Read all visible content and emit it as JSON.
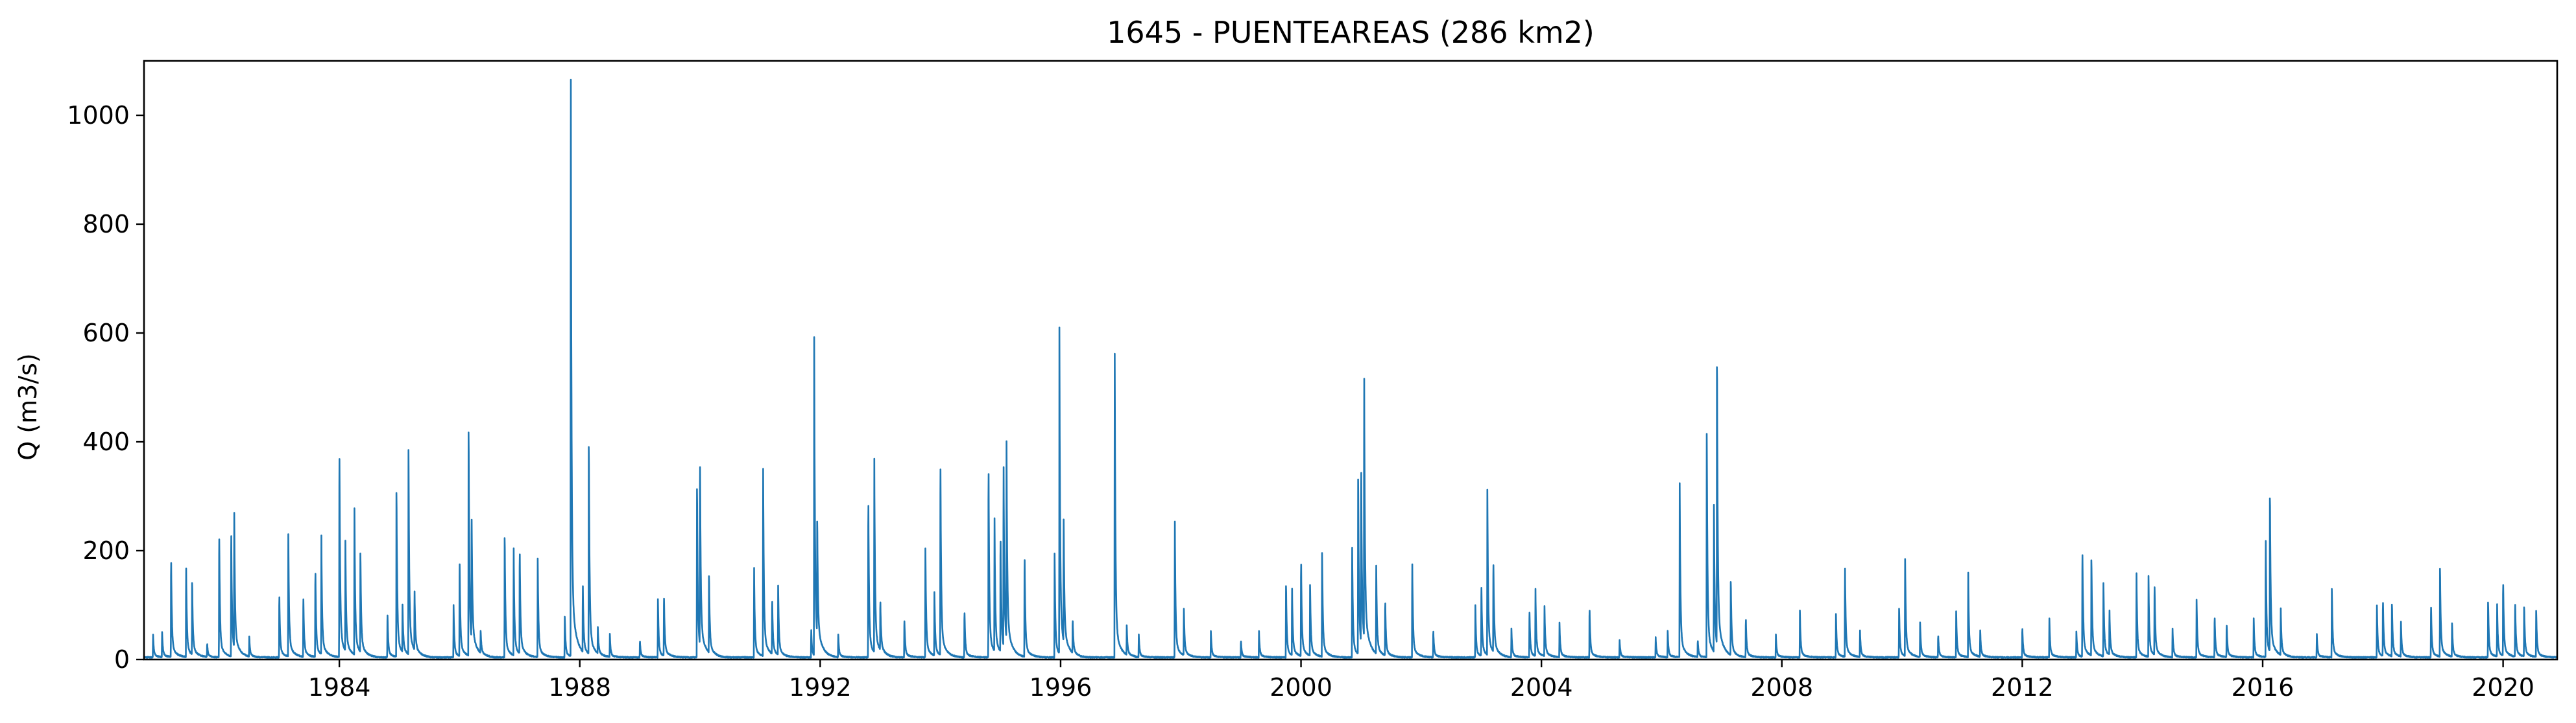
{
  "chart_data": {
    "type": "line",
    "title": "1645 - PUENTEAREAS (286 km2)",
    "xlabel": "",
    "ylabel": "Q (m3/s)",
    "xlim": [
      1980.75,
      2020.9
    ],
    "ylim": [
      0,
      1100
    ],
    "xticks": [
      1984,
      1988,
      1992,
      1996,
      2000,
      2004,
      2008,
      2012,
      2016,
      2020
    ],
    "yticks": [
      0,
      200,
      400,
      600,
      800,
      1000
    ],
    "grid": false,
    "legend": "none",
    "series": [
      {
        "color": "#1f77b4",
        "base_flow": 3,
        "peaks": [
          [
            1980.9,
            40
          ],
          [
            1981.05,
            45
          ],
          [
            1981.2,
            180
          ],
          [
            1981.45,
            160
          ],
          [
            1981.55,
            130
          ],
          [
            1981.8,
            25
          ],
          [
            1982.0,
            225
          ],
          [
            1982.2,
            230
          ],
          [
            1982.25,
            245
          ],
          [
            1982.5,
            35
          ],
          [
            1983.0,
            115
          ],
          [
            1983.15,
            225
          ],
          [
            1983.4,
            110
          ],
          [
            1983.6,
            160
          ],
          [
            1983.7,
            205
          ],
          [
            1984.0,
            380
          ],
          [
            1984.1,
            190
          ],
          [
            1984.25,
            265
          ],
          [
            1984.35,
            180
          ],
          [
            1984.8,
            80
          ],
          [
            1984.95,
            300
          ],
          [
            1985.05,
            85
          ],
          [
            1985.15,
            375
          ],
          [
            1985.25,
            105
          ],
          [
            1985.9,
            90
          ],
          [
            1986.0,
            175
          ],
          [
            1986.15,
            410
          ],
          [
            1986.2,
            230
          ],
          [
            1986.35,
            40
          ],
          [
            1986.75,
            220
          ],
          [
            1986.9,
            185
          ],
          [
            1987.0,
            190
          ],
          [
            1987.3,
            170
          ],
          [
            1987.75,
            75
          ],
          [
            1987.85,
            1048
          ],
          [
            1988.05,
            120
          ],
          [
            1988.15,
            380
          ],
          [
            1988.3,
            45
          ],
          [
            1988.5,
            40
          ],
          [
            1989.0,
            30
          ],
          [
            1989.3,
            100
          ],
          [
            1989.4,
            110
          ],
          [
            1989.95,
            310
          ],
          [
            1990.0,
            340
          ],
          [
            1990.15,
            140
          ],
          [
            1990.9,
            155
          ],
          [
            1991.05,
            340
          ],
          [
            1991.2,
            100
          ],
          [
            1991.3,
            120
          ],
          [
            1991.85,
            50
          ],
          [
            1991.9,
            550
          ],
          [
            1991.95,
            205
          ],
          [
            1992.3,
            40
          ],
          [
            1992.8,
            290
          ],
          [
            1992.9,
            333
          ],
          [
            1993.0,
            90
          ],
          [
            1993.4,
            70
          ],
          [
            1993.75,
            200
          ],
          [
            1993.9,
            110
          ],
          [
            1994.0,
            355
          ],
          [
            1994.4,
            85
          ],
          [
            1994.8,
            350
          ],
          [
            1994.9,
            230
          ],
          [
            1995.0,
            210
          ],
          [
            1995.05,
            325
          ],
          [
            1995.1,
            340
          ],
          [
            1995.4,
            185
          ],
          [
            1995.9,
            180
          ],
          [
            1995.98,
            540
          ],
          [
            1996.05,
            220
          ],
          [
            1996.2,
            60
          ],
          [
            1996.9,
            525
          ],
          [
            1997.1,
            50
          ],
          [
            1997.3,
            40
          ],
          [
            1997.9,
            235
          ],
          [
            1998.05,
            85
          ],
          [
            1998.5,
            45
          ],
          [
            1999.0,
            30
          ],
          [
            1999.3,
            45
          ],
          [
            1999.75,
            130
          ],
          [
            1999.85,
            120
          ],
          [
            2000.0,
            175
          ],
          [
            2000.15,
            130
          ],
          [
            2000.35,
            190
          ],
          [
            2000.85,
            200
          ],
          [
            2000.95,
            320
          ],
          [
            2001.0,
            325
          ],
          [
            2001.05,
            470
          ],
          [
            2001.25,
            160
          ],
          [
            2001.4,
            100
          ],
          [
            2001.85,
            170
          ],
          [
            2002.2,
            50
          ],
          [
            2002.9,
            90
          ],
          [
            2003.0,
            130
          ],
          [
            2003.1,
            285
          ],
          [
            2003.2,
            165
          ],
          [
            2003.5,
            50
          ],
          [
            2003.8,
            85
          ],
          [
            2003.9,
            115
          ],
          [
            2004.05,
            90
          ],
          [
            2004.3,
            60
          ],
          [
            2004.8,
            90
          ],
          [
            2005.3,
            30
          ],
          [
            2005.9,
            35
          ],
          [
            2006.1,
            45
          ],
          [
            2006.3,
            300
          ],
          [
            2006.6,
            30
          ],
          [
            2006.75,
            410
          ],
          [
            2006.87,
            250
          ],
          [
            2006.92,
            525
          ],
          [
            2007.15,
            135
          ],
          [
            2007.4,
            70
          ],
          [
            2007.9,
            40
          ],
          [
            2008.3,
            80
          ],
          [
            2008.9,
            75
          ],
          [
            2009.05,
            160
          ],
          [
            2009.3,
            45
          ],
          [
            2009.95,
            90
          ],
          [
            2010.05,
            175
          ],
          [
            2010.3,
            60
          ],
          [
            2010.6,
            40
          ],
          [
            2010.9,
            80
          ],
          [
            2011.1,
            145
          ],
          [
            2011.3,
            45
          ],
          [
            2012.0,
            55
          ],
          [
            2012.45,
            70
          ],
          [
            2012.9,
            45
          ],
          [
            2013.0,
            195
          ],
          [
            2013.15,
            175
          ],
          [
            2013.35,
            135
          ],
          [
            2013.45,
            80
          ],
          [
            2013.9,
            145
          ],
          [
            2014.1,
            140
          ],
          [
            2014.2,
            130
          ],
          [
            2014.5,
            50
          ],
          [
            2014.9,
            100
          ],
          [
            2015.2,
            75
          ],
          [
            2015.4,
            60
          ],
          [
            2015.85,
            70
          ],
          [
            2016.05,
            210
          ],
          [
            2016.12,
            290
          ],
          [
            2016.3,
            80
          ],
          [
            2016.9,
            40
          ],
          [
            2017.15,
            125
          ],
          [
            2017.9,
            90
          ],
          [
            2018.0,
            100
          ],
          [
            2018.15,
            95
          ],
          [
            2018.3,
            60
          ],
          [
            2018.8,
            95
          ],
          [
            2018.95,
            160
          ],
          [
            2019.15,
            60
          ],
          [
            2019.75,
            100
          ],
          [
            2019.9,
            90
          ],
          [
            2020.0,
            135
          ],
          [
            2020.2,
            100
          ],
          [
            2020.35,
            90
          ],
          [
            2020.55,
            85
          ]
        ]
      }
    ]
  }
}
